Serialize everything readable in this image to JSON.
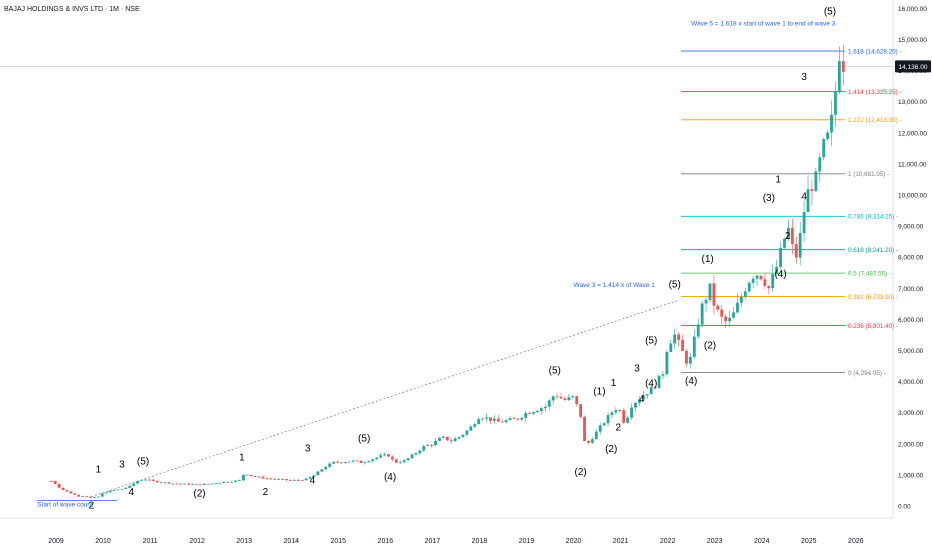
{
  "title": "BAJAJ HOLDINGS & INVS LTD · 1M · NSE",
  "chart_data": {
    "type": "candlestick",
    "title": "BAJAJ HOLDINGS & INVS LTD · 1M · NSE",
    "x_ticks": [
      "2009",
      "2010",
      "2011",
      "2012",
      "2013",
      "2014",
      "2015",
      "2016",
      "2017",
      "2018",
      "2019",
      "2020",
      "2021",
      "2022",
      "2023",
      "2024",
      "2025",
      "2026"
    ],
    "y_ticks": [
      "0.00",
      "1,000.00",
      "2,000.00",
      "3,000.00",
      "4,000.00",
      "5,000.00",
      "6,000.00",
      "7,000.00",
      "8,000.00",
      "9,000.00",
      "10,000.00",
      "11,000.00",
      "12,000.00",
      "13,000.00",
      "14,000.00",
      "15,000.00",
      "16,000.00"
    ],
    "ylim": [
      0,
      16000
    ],
    "last_price": {
      "label": "14,136.00",
      "value": 14136
    },
    "colors": {
      "up": "#26a69a",
      "down": "#ef5350",
      "wave": "#000000",
      "note": "#2962ff"
    },
    "price_path": [
      [
        2008.9,
        800
      ],
      [
        2009.0,
        700
      ],
      [
        2009.1,
        550
      ],
      [
        2009.3,
        420
      ],
      [
        2009.5,
        300
      ],
      [
        2009.6,
        330
      ],
      [
        2009.75,
        250
      ],
      [
        2009.9,
        300
      ],
      [
        2010.0,
        420
      ],
      [
        2010.2,
        500
      ],
      [
        2010.4,
        550
      ],
      [
        2010.55,
        620
      ],
      [
        2010.75,
        820
      ],
      [
        2010.9,
        860
      ],
      [
        2011.05,
        800
      ],
      [
        2011.2,
        770
      ],
      [
        2011.5,
        720
      ],
      [
        2011.8,
        700
      ],
      [
        2012.0,
        680
      ],
      [
        2012.3,
        720
      ],
      [
        2012.6,
        780
      ],
      [
        2012.9,
        820
      ],
      [
        2013.0,
        1050
      ],
      [
        2013.2,
        950
      ],
      [
        2013.5,
        880
      ],
      [
        2013.8,
        850
      ],
      [
        2014.0,
        820
      ],
      [
        2014.3,
        850
      ],
      [
        2014.5,
        1000
      ],
      [
        2014.7,
        1250
      ],
      [
        2014.9,
        1400
      ],
      [
        2015.1,
        1420
      ],
      [
        2015.3,
        1450
      ],
      [
        2015.5,
        1400
      ],
      [
        2015.7,
        1500
      ],
      [
        2015.9,
        1600
      ],
      [
        2016.05,
        1650
      ],
      [
        2016.2,
        1400
      ],
      [
        2016.4,
        1450
      ],
      [
        2016.6,
        1650
      ],
      [
        2016.8,
        1900
      ],
      [
        2017.0,
        2000
      ],
      [
        2017.2,
        2200
      ],
      [
        2017.4,
        2100
      ],
      [
        2017.6,
        2250
      ],
      [
        2017.8,
        2500
      ],
      [
        2018.0,
        2900
      ],
      [
        2018.2,
        2800
      ],
      [
        2018.4,
        2700
      ],
      [
        2018.6,
        2750
      ],
      [
        2018.8,
        2800
      ],
      [
        2019.0,
        3000
      ],
      [
        2019.2,
        3100
      ],
      [
        2019.4,
        3200
      ],
      [
        2019.6,
        3600
      ],
      [
        2019.8,
        3400
      ],
      [
        2020.0,
        3500
      ],
      [
        2020.15,
        2900
      ],
      [
        2020.25,
        1900
      ],
      [
        2020.4,
        2200
      ],
      [
        2020.6,
        2600
      ],
      [
        2020.8,
        3000
      ],
      [
        2020.95,
        3200
      ],
      [
        2021.1,
        2600
      ],
      [
        2021.2,
        3200
      ],
      [
        2021.35,
        3400
      ],
      [
        2021.5,
        3600
      ],
      [
        2021.7,
        3800
      ],
      [
        2021.9,
        4300
      ],
      [
        2022.0,
        5200
      ],
      [
        2022.15,
        5500
      ],
      [
        2022.3,
        5000
      ],
      [
        2022.45,
        4500
      ],
      [
        2022.55,
        5200
      ],
      [
        2022.7,
        6300
      ],
      [
        2022.9,
        7000
      ],
      [
        2023.0,
        6400
      ],
      [
        2023.2,
        5900
      ],
      [
        2023.35,
        6000
      ],
      [
        2023.5,
        6500
      ],
      [
        2023.7,
        7200
      ],
      [
        2023.85,
        7500
      ],
      [
        2024.0,
        7400
      ],
      [
        2024.15,
        7000
      ],
      [
        2024.3,
        7600
      ],
      [
        2024.45,
        8400
      ],
      [
        2024.55,
        9000
      ],
      [
        2024.65,
        8300
      ],
      [
        2024.75,
        8000
      ],
      [
        2024.9,
        9500
      ],
      [
        2025.0,
        10200
      ],
      [
        2025.15,
        10500
      ],
      [
        2025.3,
        11500
      ],
      [
        2025.45,
        12000
      ],
      [
        2025.55,
        13100
      ],
      [
        2025.65,
        14600
      ],
      [
        2025.75,
        14136
      ]
    ],
    "wave_labels": [
      {
        "text": "1",
        "x": 2009.9,
        "y": 1080
      },
      {
        "text": "2",
        "x": 2009.75,
        "y": -80
      },
      {
        "text": "3",
        "x": 2010.4,
        "y": 1230
      },
      {
        "text": "4",
        "x": 2010.6,
        "y": 360
      },
      {
        "text": "(5)",
        "x": 2010.85,
        "y": 1330
      },
      {
        "text": "(2)",
        "x": 2012.05,
        "y": 300
      },
      {
        "text": "1",
        "x": 2012.95,
        "y": 1460
      },
      {
        "text": "2",
        "x": 2013.45,
        "y": 360
      },
      {
        "text": "3",
        "x": 2014.35,
        "y": 1760
      },
      {
        "text": "4",
        "x": 2014.45,
        "y": 720
      },
      {
        "text": "(5)",
        "x": 2015.55,
        "y": 2070
      },
      {
        "text": "(4)",
        "x": 2016.1,
        "y": 840
      },
      {
        "text": "(5)",
        "x": 2019.6,
        "y": 4260
      },
      {
        "text": "(2)",
        "x": 2020.15,
        "y": 1000
      },
      {
        "text": "(1)",
        "x": 2020.55,
        "y": 3580
      },
      {
        "text": "(2)",
        "x": 2020.8,
        "y": 1730
      },
      {
        "text": "1",
        "x": 2020.85,
        "y": 3860
      },
      {
        "text": "2",
        "x": 2020.95,
        "y": 2430
      },
      {
        "text": "3",
        "x": 2021.35,
        "y": 4320
      },
      {
        "text": "4",
        "x": 2021.45,
        "y": 3340
      },
      {
        "text": "(4)",
        "x": 2021.65,
        "y": 3840
      },
      {
        "text": "(5)",
        "x": 2021.65,
        "y": 5220
      },
      {
        "text": "(5)",
        "x": 2022.15,
        "y": 7030
      },
      {
        "text": "(4)",
        "x": 2022.5,
        "y": 3930
      },
      {
        "text": "(1)",
        "x": 2022.85,
        "y": 7850
      },
      {
        "text": "(2)",
        "x": 2022.9,
        "y": 5060
      },
      {
        "text": "(3)",
        "x": 2024.15,
        "y": 9800
      },
      {
        "text": "(4)",
        "x": 2024.4,
        "y": 7360
      },
      {
        "text": "1",
        "x": 2024.35,
        "y": 10400
      },
      {
        "text": "2",
        "x": 2024.55,
        "y": 8580
      },
      {
        "text": "3",
        "x": 2024.9,
        "y": 13690
      },
      {
        "text": "4",
        "x": 2024.9,
        "y": 9860
      },
      {
        "text": "(5)",
        "x": 2025.45,
        "y": 15800
      }
    ],
    "fib_levels": [
      {
        "label": "0 (4,294.05)",
        "value": 4294.05,
        "color": "#787b86"
      },
      {
        "label": "0.236 (5,801.40)",
        "value": 5801.4,
        "color": "#f23645"
      },
      {
        "label": "0.382 (6,733.90)",
        "value": 6733.9,
        "color": "#ff9800"
      },
      {
        "label": "0.5 (7,487.55)",
        "value": 7487.55,
        "color": "#4caf50"
      },
      {
        "label": "0.618 (8,241.20)",
        "value": 8241.2,
        "color": "#089981"
      },
      {
        "label": "0.786 (9,314.25)",
        "value": 9314.25,
        "color": "#00bcd4"
      },
      {
        "label": "1 (10,681.05)",
        "value": 10681.05,
        "color": "#787b86"
      },
      {
        "label": "1.272 (12,418.30)",
        "value": 12418.3,
        "color": "#ff9800"
      },
      {
        "label": "1.414 (13,325.25)",
        "value": 13325.25,
        "color": "#f23645"
      },
      {
        "label": "1.618 (14,628.20)",
        "value": 14628.2,
        "color": "#2962ff"
      }
    ],
    "annotations": [
      {
        "text": "Wave 5 = 1.618 x start of wave 1 to end of wave 3",
        "x": 2022.5,
        "y": 15450,
        "color": "#2962ff"
      },
      {
        "text": "Wave 3 = 1.414 x of Wave 1",
        "x": 2020.0,
        "y": 7040,
        "color": "#2962ff"
      },
      {
        "text": "Start of wave count",
        "x": 2008.6,
        "y": -20,
        "color": "#2962ff"
      }
    ],
    "trendline": {
      "from": [
        2009.75,
        300
      ],
      "to": [
        2022.2,
        6600
      ]
    },
    "start_line": {
      "from": [
        2008.6,
        180
      ],
      "to": [
        2010.3,
        180
      ]
    },
    "ref_line_value": 14136
  }
}
